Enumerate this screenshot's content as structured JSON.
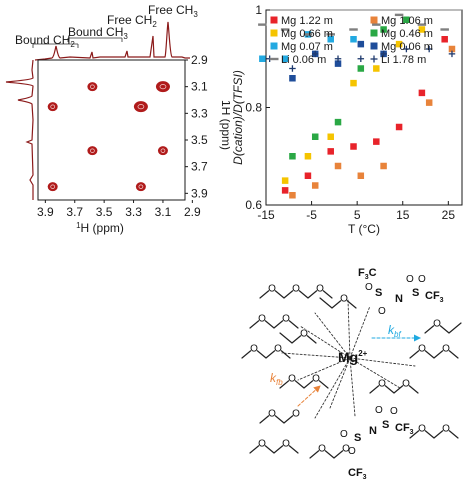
{
  "nmr": {
    "top_labels": {
      "bound_ch2": "Bound CH",
      "bound_ch2_sub": "2",
      "bound_ch3": "Bound CH",
      "bound_ch3_sub": "3",
      "free_ch2": "Free CH",
      "free_ch2_sub": "2",
      "free_ch3": "Free CH",
      "free_ch3_sub": "3"
    },
    "x_label_sup": "1",
    "x_label": "H (ppm)",
    "y_label": "1H (ppm)",
    "x_ticks": [
      "3.9",
      "3.7",
      "3.5",
      "3.3",
      "3.1",
      "2.9"
    ],
    "y_ticks": [
      "2.9",
      "3.1",
      "3.3",
      "3.5",
      "3.7",
      "3.9"
    ],
    "peak_color": "#b01b1b",
    "peaks": [
      {
        "x": 3.1,
        "y": 3.1,
        "size": "large"
      },
      {
        "x": 3.25,
        "y": 3.25,
        "size": "large"
      },
      {
        "x": 3.58,
        "y": 3.58,
        "size": "small"
      },
      {
        "x": 3.85,
        "y": 3.85,
        "size": "small"
      },
      {
        "x": 3.58,
        "y": 3.1,
        "size": "small"
      },
      {
        "x": 3.85,
        "y": 3.25,
        "size": "small"
      },
      {
        "x": 3.1,
        "y": 3.58,
        "size": "small"
      },
      {
        "x": 3.25,
        "y": 3.85,
        "size": "small"
      }
    ]
  },
  "chart_data": {
    "type": "scatter",
    "xlabel": "T (°C)",
    "ylabel": "D(cation)/D(TFSI)",
    "xlim": [
      -15,
      28
    ],
    "ylim": [
      0.6,
      1.0
    ],
    "x_ticks": [
      "-15",
      "-5",
      "5",
      "15",
      "25"
    ],
    "y_ticks": [
      "0.6",
      "0.8",
      "1"
    ],
    "legend_position": "top",
    "series": [
      {
        "name": "Mg 1.22 m",
        "color": "#e8232a",
        "marker": "square",
        "points": [
          [
            -10,
            0.63
          ],
          [
            -5,
            0.66
          ],
          [
            0,
            0.71
          ],
          [
            5,
            0.72
          ],
          [
            10,
            0.73
          ],
          [
            15,
            0.76
          ],
          [
            20,
            0.83
          ],
          [
            25,
            0.94
          ]
        ]
      },
      {
        "name": "Mg 1.06 m",
        "color": "#e8833a",
        "marker": "square",
        "points": [
          [
            -10,
            0.62
          ],
          [
            -5,
            0.64
          ],
          [
            0,
            0.68
          ],
          [
            5,
            0.66
          ],
          [
            10,
            0.68
          ],
          [
            20,
            0.81
          ],
          [
            25,
            0.92
          ]
        ]
      },
      {
        "name": "Mg 0.66 m",
        "color": "#f5c400",
        "marker": "square",
        "points": [
          [
            -10,
            0.65
          ],
          [
            -5,
            0.7
          ],
          [
            0,
            0.74
          ],
          [
            5,
            0.85
          ],
          [
            10,
            0.88
          ],
          [
            15,
            0.93
          ],
          [
            20,
            0.96
          ]
        ]
      },
      {
        "name": "Mg 0.46 m",
        "color": "#2aa845",
        "marker": "square",
        "points": [
          [
            -10,
            0.7
          ],
          [
            -5,
            0.74
          ],
          [
            0,
            0.77
          ],
          [
            5,
            0.88
          ],
          [
            10,
            0.96
          ],
          [
            15,
            0.98
          ]
        ]
      },
      {
        "name": "Mg 0.07 m",
        "color": "#22a9e1",
        "marker": "square",
        "points": [
          [
            -15,
            0.9
          ],
          [
            -10,
            0.9
          ],
          [
            -5,
            0.95
          ],
          [
            0,
            0.94
          ],
          [
            5,
            0.94
          ]
        ]
      },
      {
        "name": "Mg 0.06 m",
        "color": "#1f4d9a",
        "marker": "square",
        "points": [
          [
            -10,
            0.86
          ],
          [
            -5,
            0.91
          ],
          [
            0,
            0.89
          ],
          [
            5,
            0.93
          ],
          [
            10,
            0.91
          ]
        ]
      },
      {
        "name": "Li 0.06 m",
        "color": "#7f7f7f",
        "marker": "dash",
        "points": [
          [
            -15,
            0.97
          ],
          [
            -10,
            0.96
          ],
          [
            -5,
            0.95
          ],
          [
            0,
            0.95
          ],
          [
            5,
            0.96
          ],
          [
            10,
            0.97
          ],
          [
            15,
            0.99
          ],
          [
            20,
            0.97
          ],
          [
            25,
            0.96
          ]
        ]
      },
      {
        "name": "Li 1.78 m",
        "color": "#1f3a6e",
        "marker": "plus",
        "points": [
          [
            -15,
            0.9
          ],
          [
            -10,
            0.88
          ],
          [
            -5,
            0.91
          ],
          [
            0,
            0.9
          ],
          [
            5,
            0.9
          ],
          [
            10,
            0.91
          ],
          [
            15,
            0.92
          ],
          [
            20,
            0.92
          ],
          [
            25,
            0.91
          ]
        ]
      }
    ]
  },
  "scheme": {
    "mg": "Mg",
    "mg_charge": "2+",
    "tfsi_top": {
      "f3c": "F",
      "f3c_sub": "3",
      "f3c_tail": "C",
      "s_left": "S",
      "n": "N",
      "s_right": "S",
      "cf3": "CF",
      "cf3_sub": "3",
      "o": "O"
    },
    "tfsi_bottom": {
      "n": "N",
      "s_left": "S",
      "s_right": "S",
      "cf3_right": "CF",
      "cf3_right_sub": "3",
      "cf3_bottom": "CF",
      "cf3_bottom_sub": "3",
      "o": "O"
    },
    "k_bf": "k",
    "k_bf_sub": "bf",
    "k_fb": "k",
    "k_fb_sub": "fb",
    "k_bf_color": "#1fa9e0",
    "k_fb_color": "#e8833a",
    "oxygen_label": "O"
  }
}
